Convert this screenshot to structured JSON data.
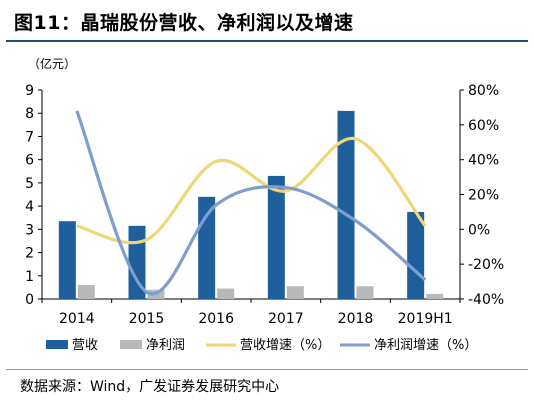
{
  "figure_title": "图11：晶瑞股份营收、净利润以及增速",
  "source_note": "数据来源：Wind，广发证券发展研究中心",
  "colors": {
    "revenue": "#1f5f9c",
    "net_profit": "#b8b8b8",
    "revenue_growth": "#f0d675",
    "profit_growth": "#7e9ed2",
    "title_rule": "#1f4e79"
  },
  "chart_data": {
    "type": "bar",
    "categories": [
      "2014",
      "2015",
      "2016",
      "2017",
      "2018",
      "2019H1"
    ],
    "left_axis": {
      "unit_label": "（亿元）",
      "ylim": [
        0,
        9
      ],
      "ticks": [
        "0",
        "1",
        "2",
        "3",
        "4",
        "5",
        "6",
        "7",
        "8",
        "9"
      ]
    },
    "right_axis": {
      "ylim": [
        -40,
        80
      ],
      "ticks": [
        "-40%",
        "-20%",
        "0%",
        "20%",
        "40%",
        "60%",
        "80%"
      ]
    },
    "series": [
      {
        "name": "营收",
        "kind": "bar",
        "axis": "left",
        "values": [
          3.35,
          3.15,
          4.4,
          5.3,
          8.1,
          3.75
        ]
      },
      {
        "name": "净利润",
        "kind": "bar",
        "axis": "left",
        "values": [
          0.6,
          0.4,
          0.45,
          0.55,
          0.55,
          0.22
        ]
      },
      {
        "name": "营收增速（%）",
        "kind": "line",
        "axis": "right",
        "values": [
          2,
          -6,
          39,
          22,
          52,
          2
        ]
      },
      {
        "name": "净利润增速（%）",
        "kind": "line",
        "axis": "right",
        "values": [
          68,
          -36,
          14,
          24,
          5,
          -29
        ]
      }
    ],
    "legend_position": "bottom",
    "grid": false
  }
}
